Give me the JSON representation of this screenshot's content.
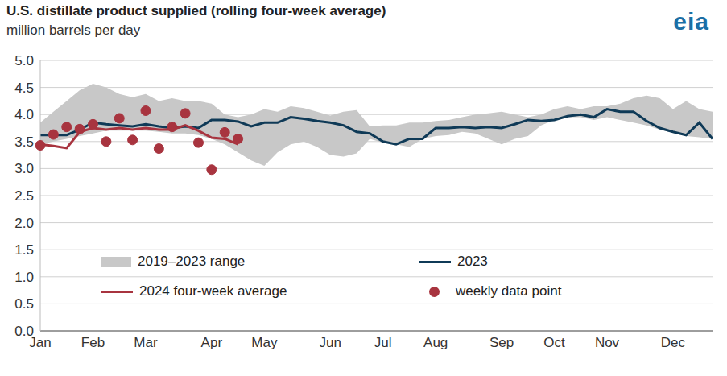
{
  "chart_data": {
    "type": "line",
    "title": "U.S. distillate product supplied (rolling four-week average)",
    "subtitle": "million barrels per day",
    "logo": "eia",
    "categories": [
      "Jan",
      null,
      null,
      null,
      "Feb",
      null,
      null,
      null,
      "Mar",
      null,
      null,
      null,
      null,
      "Apr",
      null,
      null,
      null,
      "May",
      null,
      null,
      null,
      null,
      "Jun",
      null,
      null,
      null,
      "Jul",
      null,
      null,
      null,
      "Aug",
      null,
      null,
      null,
      null,
      "Sep",
      null,
      null,
      null,
      "Oct",
      null,
      null,
      null,
      "Nov",
      null,
      null,
      null,
      null,
      "Dec",
      null,
      null,
      null
    ],
    "ylim": [
      0,
      5
    ],
    "yticks": [
      {
        "value": 0,
        "label": "0.0"
      },
      0.5,
      {
        "value": 1,
        "label": "1.0"
      },
      1.5,
      {
        "value": 2,
        "label": "2.0"
      },
      2.5,
      {
        "value": 3,
        "label": "3.0"
      },
      3.5,
      {
        "value": 4,
        "label": "4.0"
      },
      4.5,
      {
        "value": 5,
        "label": "5.0"
      }
    ],
    "grid": true,
    "legend": "bottom",
    "series": [
      {
        "name": "2019–2023 range",
        "type": "range",
        "color": "#c8c8c8",
        "low": [
          3.45,
          3.5,
          3.55,
          3.6,
          3.65,
          3.7,
          3.7,
          3.7,
          3.7,
          3.68,
          3.65,
          3.65,
          3.62,
          3.55,
          3.45,
          3.3,
          3.15,
          3.05,
          3.3,
          3.45,
          3.5,
          3.4,
          3.25,
          3.22,
          3.28,
          3.55,
          3.48,
          3.45,
          3.4,
          3.55,
          3.6,
          3.62,
          3.68,
          3.65,
          3.55,
          3.45,
          3.55,
          3.6,
          3.8,
          3.9,
          3.95,
          3.95,
          3.9,
          3.95,
          3.9,
          3.85,
          3.8,
          3.72,
          3.66,
          3.6,
          3.58,
          3.55
        ],
        "high": [
          3.85,
          4.05,
          4.25,
          4.45,
          4.57,
          4.5,
          4.38,
          4.32,
          4.38,
          4.25,
          4.3,
          4.25,
          4.25,
          4.2,
          4.0,
          3.95,
          4.0,
          4.1,
          4.05,
          4.15,
          4.12,
          4.05,
          3.98,
          4.05,
          4.08,
          3.78,
          3.8,
          3.8,
          3.85,
          3.85,
          3.88,
          3.9,
          3.95,
          4.0,
          4.02,
          4.05,
          4.0,
          3.95,
          4.0,
          4.1,
          4.15,
          4.1,
          4.15,
          4.15,
          4.2,
          4.3,
          4.35,
          4.3,
          4.1,
          4.25,
          4.1,
          4.05
        ]
      },
      {
        "name": "2023",
        "type": "line",
        "color": "#0f3a57",
        "values": [
          3.62,
          3.62,
          3.62,
          3.72,
          3.85,
          3.82,
          3.8,
          3.78,
          3.82,
          3.78,
          3.75,
          3.78,
          3.75,
          3.9,
          3.9,
          3.87,
          3.78,
          3.85,
          3.85,
          3.95,
          3.92,
          3.88,
          3.85,
          3.8,
          3.68,
          3.65,
          3.5,
          3.45,
          3.55,
          3.55,
          3.75,
          3.75,
          3.77,
          3.75,
          3.77,
          3.75,
          3.82,
          3.9,
          3.88,
          3.9,
          3.97,
          4.0,
          3.95,
          4.1,
          4.05,
          4.05,
          3.88,
          3.75,
          3.68,
          3.62,
          3.85,
          3.55
        ]
      },
      {
        "name": "2024 four-week average",
        "type": "line",
        "color": "#a8343f",
        "values": [
          3.45,
          3.42,
          3.38,
          3.68,
          3.75,
          3.72,
          3.75,
          3.72,
          3.75,
          3.72,
          3.72,
          3.8,
          3.7,
          3.57,
          3.55,
          3.45,
          null,
          null,
          null,
          null,
          null,
          null,
          null,
          null,
          null,
          null,
          null,
          null,
          null,
          null,
          null,
          null,
          null,
          null,
          null,
          null,
          null,
          null,
          null,
          null,
          null,
          null,
          null,
          null,
          null,
          null,
          null,
          null,
          null,
          null,
          null,
          null
        ]
      },
      {
        "name": "weekly data point",
        "type": "scatter",
        "marker": "circle",
        "color": "#a8343f",
        "values": [
          3.43,
          3.63,
          3.77,
          3.73,
          3.82,
          3.5,
          3.93,
          3.53,
          4.07,
          3.37,
          3.77,
          4.02,
          3.48,
          2.98,
          3.67,
          3.55,
          null,
          null,
          null,
          null,
          null,
          null,
          null,
          null,
          null,
          null,
          null,
          null,
          null,
          null,
          null,
          null,
          null,
          null,
          null,
          null,
          null,
          null,
          null,
          null,
          null,
          null,
          null,
          null,
          null,
          null,
          null,
          null,
          null,
          null,
          null,
          null
        ]
      }
    ]
  }
}
